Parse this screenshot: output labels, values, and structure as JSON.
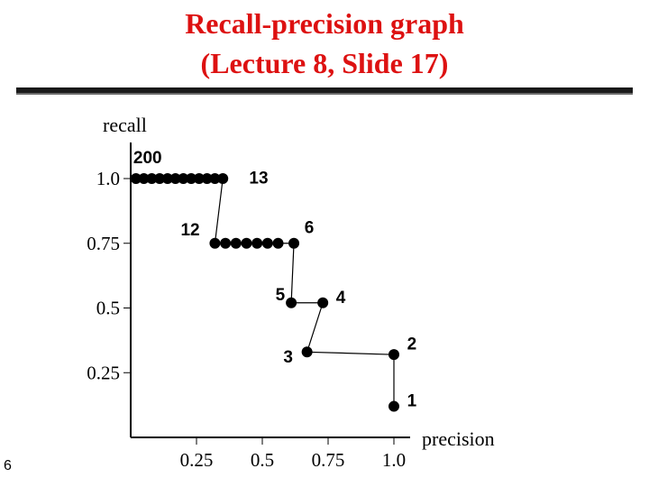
{
  "slide": {
    "title_line1": "Recall-precision graph",
    "title_line2": "(Lecture 8, Slide 17)",
    "number": "6",
    "title_color": "#dd1111"
  },
  "chart_data": {
    "type": "scatter",
    "title": "Recall-precision graph (Lecture 8, Slide 17)",
    "xlabel": "precision",
    "ylabel": "recall",
    "xlim": [
      0,
      1.0
    ],
    "ylim": [
      0,
      1.0
    ],
    "x_ticks": [
      "0.25",
      "0.5",
      "0.75",
      "1.0"
    ],
    "y_ticks": [
      "1.0",
      "0.75",
      "0.5",
      "0.25"
    ],
    "grid": false,
    "points": [
      {
        "x": 0.02,
        "y": 1.0
      },
      {
        "x": 0.05,
        "y": 1.0
      },
      {
        "x": 0.08,
        "y": 1.0
      },
      {
        "x": 0.11,
        "y": 1.0
      },
      {
        "x": 0.14,
        "y": 1.0
      },
      {
        "x": 0.17,
        "y": 1.0
      },
      {
        "x": 0.2,
        "y": 1.0
      },
      {
        "x": 0.23,
        "y": 1.0
      },
      {
        "x": 0.26,
        "y": 1.0
      },
      {
        "x": 0.29,
        "y": 1.0
      },
      {
        "x": 0.32,
        "y": 1.0
      },
      {
        "x": 0.35,
        "y": 1.0
      },
      {
        "x": 0.32,
        "y": 0.75
      },
      {
        "x": 0.36,
        "y": 0.75
      },
      {
        "x": 0.4,
        "y": 0.75
      },
      {
        "x": 0.44,
        "y": 0.75
      },
      {
        "x": 0.48,
        "y": 0.75
      },
      {
        "x": 0.52,
        "y": 0.75
      },
      {
        "x": 0.56,
        "y": 0.75
      },
      {
        "x": 0.62,
        "y": 0.75
      },
      {
        "x": 0.61,
        "y": 0.52
      },
      {
        "x": 0.73,
        "y": 0.52
      },
      {
        "x": 0.67,
        "y": 0.33
      },
      {
        "x": 1.0,
        "y": 0.32
      },
      {
        "x": 1.0,
        "y": 0.12
      }
    ],
    "step_path": [
      {
        "x": 0.02,
        "y": 1.0
      },
      {
        "x": 0.35,
        "y": 1.0
      },
      {
        "x": 0.32,
        "y": 0.75
      },
      {
        "x": 0.62,
        "y": 0.75
      },
      {
        "x": 0.61,
        "y": 0.52
      },
      {
        "x": 0.73,
        "y": 0.52
      },
      {
        "x": 0.67,
        "y": 0.33
      },
      {
        "x": 1.0,
        "y": 0.32
      },
      {
        "x": 1.0,
        "y": 0.12
      }
    ],
    "annotations": [
      {
        "text": "200",
        "x": 0.01,
        "y": 1.06
      },
      {
        "text": "13",
        "x": 0.45,
        "y": 0.98
      },
      {
        "text": "12",
        "x": 0.19,
        "y": 0.78
      },
      {
        "text": "6",
        "x": 0.66,
        "y": 0.79
      },
      {
        "text": "5",
        "x": 0.55,
        "y": 0.53
      },
      {
        "text": "4",
        "x": 0.78,
        "y": 0.52
      },
      {
        "text": "3",
        "x": 0.58,
        "y": 0.29
      },
      {
        "text": "2",
        "x": 1.05,
        "y": 0.34
      },
      {
        "text": "1",
        "x": 1.05,
        "y": 0.12
      }
    ]
  }
}
